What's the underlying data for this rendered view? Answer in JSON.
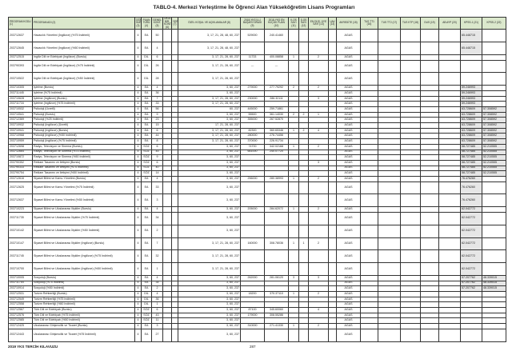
{
  "title": "TABLO-4. Merkezi Yerleştirme İle Öğrenci Alan Yükseköğretim Lisans Programları",
  "headers": [
    "PROGRAM KODU (1)",
    "PROGRAM ADI (2)",
    "ÖĞR. SÜRE. (3)",
    "PUAN TÜRÜ (4)",
    "GENEL KONT. (5)",
    "OKUL BİR. KONT. (6)",
    "YER (7)",
    "ÖZEL KOŞUL VE AÇIKLAMALAR (8)",
    "2018-YKS İLLİ BAŞARI SIRASI (9)",
    "2018-YKS EN KÜÇÜK PUAN (10)",
    "K.OS SAYI (11)",
    "Ş.OS SAYI (12)",
    "EN DÜŞ. ÜYE SAYI (13)",
    "UAV (14)",
    "AKREDİTE (15)",
    "TUS TT1 (16)",
    "TUS TT2 (17)",
    "TUS KTP (18)",
    "DUS (19)",
    "AB AYP (20)",
    "KPSS-1 (21)",
    "KPSS-2 (22)"
  ],
  "rows": [
    [
      "203712637",
      "Havacılık Yönetimi (İngilizce) (%75 İndirimli)",
      "4",
      "EA",
      "50",
      "",
      "",
      "3, 17, 21, 28, 48, 60, 237",
      "529000",
      "240.41460",
      "",
      "",
      "",
      "",
      "AGAS",
      "",
      "",
      "",
      "",
      "",
      "65.448715",
      ""
    ],
    [
      "203712645",
      "Havacılık Yönetimi (İngilizce) (%50 İndirimli)",
      "4",
      "EA",
      "4",
      "",
      "",
      "3, 17, 21, 28, 48, 60, 237",
      "",
      "",
      "",
      "",
      "",
      "",
      "AGAS",
      "",
      "",
      "",
      "",
      "",
      "65.448715",
      ""
    ],
    [
      "203712515",
      "İngiliz Dili ve Edebiyatı (İngilizce) (Burslu)",
      "4",
      "DİL",
      "6",
      "",
      "",
      "3, 17, 21, 28, 60, 237",
      "11733",
      "400.08858",
      "1",
      "",
      "2",
      "",
      "AGAS",
      "",
      "",
      "",
      "",
      "",
      "",
      ""
    ],
    [
      "203790393",
      "İngiliz Dili ve Edebiyatı (İngilizce) (%75 İndirimli)",
      "4",
      "DİL",
      "26",
      "",
      "",
      "3, 17, 21, 28, 60, 237",
      "---",
      "---",
      "",
      "",
      "",
      "",
      "AGAS",
      "",
      "",
      "",
      "",
      "",
      "",
      ""
    ],
    [
      "203710522",
      "İngiliz Dili ve Edebiyatı (İngilizce) (%50 İndirimli)",
      "4",
      "DİL",
      "28",
      "",
      "",
      "3, 17, 21, 28, 60, 237",
      "",
      "",
      "",
      "",
      "",
      "",
      "AGAS",
      "",
      "",
      "",
      "",
      "",
      "",
      ""
    ],
    [
      "203710305",
      "İşletme (Burslu)",
      "4",
      "EA",
      "4",
      "",
      "",
      "3, 60, 237",
      "279000",
      "277.79292",
      "2",
      "",
      "2",
      "",
      "AGAS",
      "",
      "",
      "",
      "",
      "",
      "59.246993",
      ""
    ],
    [
      "203711445",
      "İşletme (%75 İndirimli)",
      "4",
      "EA",
      "36",
      "",
      "",
      "3, 60, 237",
      "",
      "",
      "",
      "",
      "",
      "",
      "AGAS",
      "",
      "",
      "",
      "",
      "",
      "59.246993",
      ""
    ],
    [
      "203710628",
      "İşletme (İngilizce) (Burslu)",
      "4",
      "EA",
      "7",
      "",
      "",
      "3, 17, 21, 28, 60, 237",
      "230000",
      "286.32111",
      "",
      "",
      "3",
      "",
      "AGAS",
      "",
      "",
      "",
      "",
      "",
      "59.246993",
      ""
    ],
    [
      "203711716",
      "İşletme (İngilizce) (%75 İndirimli)",
      "4",
      "EA",
      "33",
      "",
      "",
      "3, 17, 21, 28, 60, 237",
      "",
      "",
      "",
      "",
      "",
      "",
      "AGAS",
      "",
      "",
      "",
      "",
      "",
      "59.246993",
      ""
    ],
    [
      "203710532",
      "Psikoloji (Ücretli)",
      "4",
      "EA",
      "56",
      "",
      "",
      "60, 237",
      "445000",
      "259.71861",
      "",
      "",
      "",
      "",
      "AGAS",
      "",
      "",
      "",
      "",
      "",
      "63.728609",
      "57.308592"
    ],
    [
      "203710541",
      "Psikoloji (Burslu)",
      "4",
      "EA",
      "9",
      "",
      "",
      "3, 60, 237",
      "55500",
      "361.14030",
      "2",
      "2",
      "1",
      "",
      "AGAS",
      "",
      "",
      "",
      "",
      "",
      "63.728609",
      "57.308592"
    ],
    [
      "203712369",
      "Psikoloji (%25 İndirimli)",
      "4",
      "EA",
      "23",
      "",
      "",
      "3, 60, 237",
      "355000",
      "267.52870",
      "",
      "",
      "",
      "",
      "AGAS",
      "",
      "",
      "",
      "",
      "",
      "63.728609",
      "57.308592"
    ],
    [
      "203710932",
      "Psikoloji (İngilizce) (Ücretli)",
      "4",
      "EA",
      "15",
      "",
      "",
      "17, 21, 28, 60, 237",
      "",
      "",
      "",
      "",
      "",
      "",
      "AGAS",
      "",
      "",
      "",
      "",
      "",
      "63.728609",
      "57.308592"
    ],
    [
      "203710941",
      "Psikoloji (İngilizce) (Burslu)",
      "4",
      "EA",
      "6",
      "",
      "",
      "3, 17, 21, 28, 60, 237",
      "82300",
      "360.65346",
      "1",
      "2",
      "4",
      "",
      "AGAS",
      "",
      "",
      "",
      "",
      "",
      "63.728609",
      "57.308592"
    ],
    [
      "203710968",
      "Psikoloji (İngilizce) (%50 İndirimli)",
      "4",
      "EA",
      "44",
      "",
      "",
      "3, 17, 21, 28, 60, 237",
      "280000",
      "276.74456",
      "",
      "",
      "",
      "",
      "AGAS",
      "",
      "",
      "",
      "",
      "",
      "63.728609",
      "57.308592"
    ],
    [
      "203710959",
      "Psikoloji (İngilizce) (%75 İndirimli)",
      "4",
      "EA",
      "8",
      "",
      "",
      "3, 17, 21, 28, 60, 237",
      "370000",
      "226.91734",
      "",
      "",
      "",
      "",
      "AGAS",
      "",
      "",
      "",
      "",
      "",
      "63.728609",
      "57.308592"
    ],
    [
      "203712698",
      "Radyo, Televizyon ve Sinema (Burslu)",
      "4",
      "SÖZ",
      "6",
      "",
      "",
      "3, 60, 237",
      "74700",
      "342.02168",
      "1",
      "",
      "2",
      "",
      "AGAS",
      "",
      "",
      "",
      "",
      "",
      "58.727485",
      "52.210555"
    ],
    [
      "203712664",
      "Radyo, Televizyon ve Sinema (%75 İndirimli)",
      "4",
      "SÖZ",
      "45",
      "",
      "",
      "3, 60, 237",
      "661000",
      "240.07720",
      "",
      "",
      "",
      "",
      "AGAS",
      "",
      "",
      "",
      "",
      "",
      "58.727485",
      "52.210555"
    ],
    [
      "203710872",
      "Radyo, Televizyon ve Sinema (%50 İndirimli)",
      "4",
      "SÖZ",
      "9",
      "",
      "",
      "3, 60, 237",
      "",
      "",
      "",
      "",
      "",
      "",
      "AGAS",
      "",
      "",
      "",
      "",
      "",
      "58.727485",
      "52.210555"
    ],
    [
      "203790352",
      "Reklam Tasarımı ve İletişimi (Burslu)",
      "4",
      "SÖZ",
      "6",
      "",
      "",
      "3, 60, 237",
      "",
      "",
      "",
      "",
      "3",
      "",
      "AGAS",
      "",
      "",
      "",
      "",
      "",
      "58.727485",
      "52.210555"
    ],
    [
      "203790333",
      "Reklam Tasarımı ve İletişimi (%75 İndirimli)",
      "4",
      "SÖZ",
      "40",
      "",
      "",
      "3, 60, 237",
      "",
      "",
      "",
      "",
      "",
      "",
      "AGAS",
      "",
      "",
      "",
      "",
      "",
      "58.727485",
      "52.210555"
    ],
    [
      "203790754",
      "Reklam Tasarımı ve İletişimi (%50 İndirimli)",
      "4",
      "SÖZ",
      "14",
      "",
      "",
      "3, 60, 237",
      "",
      "",
      "",
      "",
      "",
      "",
      "AGAS",
      "",
      "",
      "",
      "",
      "",
      "58.727485",
      "52.210555"
    ],
    [
      "203712616",
      "Siyaset Bilimi ve Kamu Yönetimi (Burslu)",
      "4",
      "EA",
      "4",
      "",
      "",
      "3, 60, 237",
      "256000",
      "280.38993",
      "1",
      "",
      "2",
      "",
      "AGAS",
      "",
      "",
      "",
      "",
      "",
      "76.476260",
      ""
    ],
    [
      "203712625",
      "Siyaset Bilimi ve Kamu Yönetimi (%75 İndirimli)",
      "4",
      "EA",
      "33",
      "",
      "",
      "3, 60, 237",
      "",
      "",
      "",
      "",
      "",
      "",
      "AGAS",
      "",
      "",
      "",
      "",
      "",
      "76.476260",
      ""
    ],
    [
      "203712637",
      "Siyaset Bilimi ve Kamu Yönetimi (%50 İndirimli)",
      "4",
      "EA",
      "3",
      "",
      "",
      "3, 60, 237",
      "",
      "",
      "",
      "",
      "",
      "",
      "AGAS",
      "",
      "",
      "",
      "",
      "",
      "76.476260",
      ""
    ],
    [
      "203710223",
      "Siyaset Bilimi ve Uluslararası İlişkiler (Burslu)",
      "4",
      "EA",
      "4",
      "",
      "",
      "3, 60, 237",
      "205000",
      "284.62072",
      "1",
      "",
      "2",
      "",
      "AGAS",
      "",
      "",
      "",
      "",
      "",
      "62.042772",
      ""
    ],
    [
      "203711735",
      "Siyaset Bilimi ve Uluslararası İlişkiler (%75 İndirimli)",
      "4",
      "EA",
      "34",
      "",
      "",
      "3, 60, 237",
      "",
      "",
      "",
      "",
      "",
      "",
      "AGAS",
      "",
      "",
      "",
      "",
      "",
      "62.042772",
      ""
    ],
    [
      "203710142",
      "Siyaset Bilimi ve Uluslararası İlişkiler (%50 İndirimli)",
      "4",
      "EA",
      "2",
      "",
      "",
      "3, 60, 237",
      "",
      "",
      "",
      "",
      "",
      "",
      "AGAS",
      "",
      "",
      "",
      "",
      "",
      "62.042772",
      ""
    ],
    [
      "203710147",
      "Siyaset Bilimi ve Uluslararası İlişkiler (İngilizce) (Burslu)",
      "4",
      "EA",
      "7",
      "",
      "",
      "3, 17, 21, 28, 60, 237",
      "160000",
      "308.78036",
      "1",
      "1",
      "2",
      "",
      "AGAS",
      "",
      "",
      "",
      "",
      "",
      "62.042772",
      ""
    ],
    [
      "203711745",
      "Siyaset Bilimi ve Uluslararası İlişkiler (İngilizce) (%75 İndirimli)",
      "4",
      "EA",
      "32",
      "",
      "",
      "3, 17, 21, 28, 60, 237",
      "",
      "",
      "",
      "",
      "",
      "",
      "AGAS",
      "",
      "",
      "",
      "",
      "",
      "62.042772",
      ""
    ],
    [
      "203710700",
      "Siyaset Bilimi ve Uluslararası İlişkiler (İngilizce) (%50 İndirimli)",
      "4",
      "EA",
      "1",
      "",
      "",
      "3, 17, 21, 28, 60, 237",
      "",
      "",
      "",
      "",
      "",
      "",
      "AGAS",
      "",
      "",
      "",
      "",
      "",
      "62.042772",
      ""
    ],
    [
      "203710005",
      "Sosyoloji (Burslu)",
      "4",
      "EA",
      "4",
      "",
      "",
      "3, 60, 237",
      "262000",
      "281.06120",
      "3",
      "",
      "3",
      "",
      "AGAS",
      "",
      "",
      "",
      "",
      "",
      "57.207762",
      "48.339015"
    ],
    [
      "203711754",
      "Sosyoloji (%75 İndirimli)",
      "4",
      "EA",
      "34",
      "",
      "",
      "3, 60, 237",
      "",
      "",
      "",
      "",
      "",
      "",
      "AGAS",
      "",
      "",
      "",
      "",
      "",
      "57.207762",
      "48.339015"
    ],
    [
      "203710914",
      "Sosyoloji (%50 İndirimli)",
      "4",
      "EA",
      "2",
      "",
      "",
      "3, 60, 237",
      "",
      "",
      "",
      "",
      "",
      "",
      "AGAS",
      "",
      "",
      "",
      "",
      "",
      "57.207762",
      "48.339015"
    ],
    [
      "203712531",
      "Turizm Rehberliği (Burslu)",
      "4",
      "DİL",
      "4",
      "",
      "",
      "3, 60, 237",
      "18200",
      "370.37110",
      "1",
      "",
      "2",
      "",
      "AGAS",
      "",
      "",
      "",
      "",
      "",
      "",
      ""
    ],
    [
      "203712549",
      "Turizm Rehberliği (%75 İndirimli)",
      "4",
      "DİL",
      "36",
      "",
      "",
      "3, 60, 237",
      "",
      "",
      "",
      "",
      "",
      "",
      "AGAS",
      "",
      "",
      "",
      "",
      "",
      "",
      ""
    ],
    [
      "203712558",
      "Turizm Rehberliği (%50 İndirimli)",
      "4",
      "DİL",
      "1",
      "",
      "",
      "3, 60, 237",
      "",
      "",
      "",
      "",
      "",
      "",
      "AGAS",
      "",
      "",
      "",
      "",
      "",
      "",
      ""
    ],
    [
      "203712567",
      "Türk Dili ve Edebiyatı (Burslu)",
      "4",
      "SÖZ",
      "6",
      "",
      "",
      "3, 60, 237",
      "87100",
      "345.60060",
      "",
      "",
      "4",
      "",
      "AGAS",
      "",
      "",
      "",
      "",
      "",
      "",
      ""
    ],
    [
      "203712576",
      "Türk Dili ve Edebiyatı (%75 İndirimli)",
      "4",
      "SÖZ",
      "43",
      "",
      "",
      "3, 60, 237",
      "179000",
      "308.55286",
      "",
      "",
      "",
      "",
      "AGAS",
      "",
      "",
      "",
      "",
      "",
      "",
      ""
    ],
    [
      "203712585",
      "Türk Dili ve Edebiyatı (%50 İndirimli)",
      "4",
      "SÖZ",
      "11",
      "",
      "",
      "3, 60, 237",
      "",
      "",
      "",
      "",
      "",
      "",
      "AGAS",
      "",
      "",
      "",
      "",
      "",
      "",
      ""
    ],
    [
      "203712425",
      "Uluslararası Girişimcilik ve Ticaret (Burslu)",
      "4",
      "EA",
      "3",
      "",
      "",
      "3, 60, 237",
      "310000",
      "271.41330",
      "1",
      "",
      "2",
      "",
      "AGAS",
      "",
      "",
      "",
      "",
      "",
      "",
      ""
    ],
    [
      "203712443",
      "Uluslararası Girişimcilik ve Ticaret (%75 İndirimli)",
      "4",
      "EA",
      "27",
      "",
      "",
      "3, 60, 237",
      "",
      "",
      "",
      "",
      "",
      "",
      "AGAS",
      "",
      "",
      "",
      "",
      "",
      "",
      ""
    ]
  ],
  "footer": {
    "left": "2019 YKS TERCİH KILAVUZU",
    "page": "287"
  }
}
